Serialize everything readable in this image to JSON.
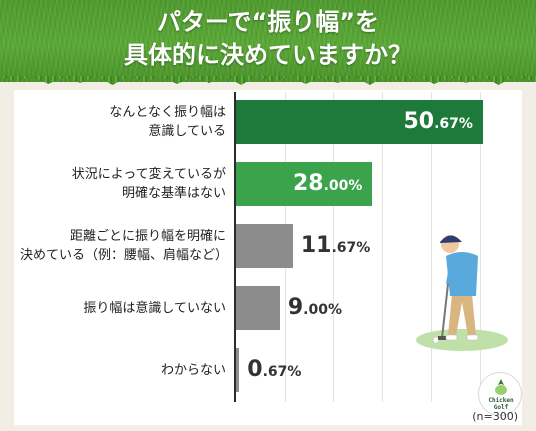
{
  "title_line1": "パターで“振り幅”を",
  "title_line2": "具体的に決めていますか？",
  "sample_note": "(n=300)",
  "logo_text_line1": "Chicken",
  "logo_text_line2": "Golf",
  "colors": {
    "dark_green": "#1e7a3a",
    "mid_green": "#3aa34b",
    "gray": "#8c8c8c",
    "banner_green": "#5aa836"
  },
  "chart_data": {
    "type": "bar",
    "orientation": "horizontal",
    "unit": "%",
    "categories": [
      {
        "line1": "なんとなく振り幅は",
        "line2": "意識している"
      },
      {
        "line1": "状況によって変えているが",
        "line2": "明確な基準はない"
      },
      {
        "line1": "距離ごとに振り幅を明確に",
        "line2": "決めている（例：腰幅、肩幅など）"
      },
      {
        "line1": "振り幅は意識していない",
        "line2": ""
      },
      {
        "line1": "わからない",
        "line2": ""
      }
    ],
    "values": [
      50.67,
      28.0,
      11.67,
      9.0,
      0.67
    ],
    "value_labels": [
      {
        "int": "50",
        "dec": ".67%"
      },
      {
        "int": "28",
        "dec": ".00%"
      },
      {
        "int": "11",
        "dec": ".67%"
      },
      {
        "int": "9",
        "dec": ".00%"
      },
      {
        "int": "0",
        "dec": ".67%"
      }
    ],
    "xlim": [
      0,
      55
    ],
    "grid": true,
    "legend": "none"
  }
}
